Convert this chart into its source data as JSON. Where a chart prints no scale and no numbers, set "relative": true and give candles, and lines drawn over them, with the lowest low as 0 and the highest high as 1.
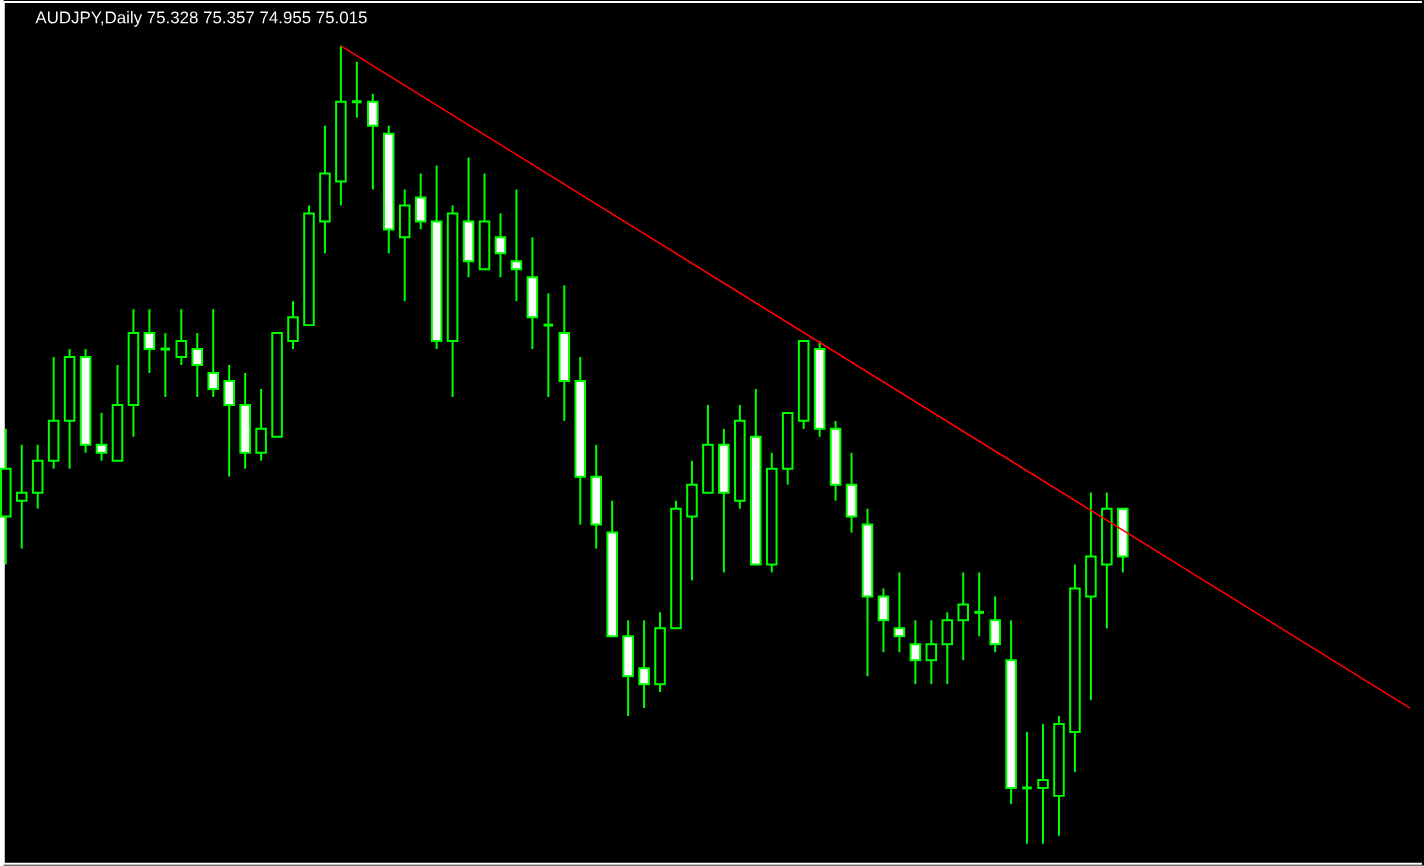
{
  "chart_data": {
    "type": "candlestick",
    "title": "AUDJPY,Daily  75.328 75.357 74.955 75.015",
    "relative": true,
    "color": "#00ff00",
    "categories": [
      null,
      null,
      null,
      null,
      null,
      null,
      null,
      null,
      null,
      null,
      null,
      null,
      null,
      null,
      null,
      null,
      null,
      null,
      null,
      null,
      null,
      null,
      null,
      null,
      null,
      null,
      null,
      null,
      null,
      null,
      null,
      null,
      null,
      null,
      null,
      null,
      null,
      null,
      null,
      null,
      null,
      null,
      null,
      null,
      null,
      null,
      null,
      null,
      null,
      null,
      null,
      null,
      null,
      null,
      null,
      null,
      null,
      null,
      null,
      null,
      null,
      null,
      null,
      null,
      null,
      null,
      null,
      null,
      null,
      null,
      null,
      null,
      null,
      null,
      null,
      null,
      null,
      null,
      null,
      null,
      null,
      null,
      null,
      null,
      null,
      null,
      null,
      null,
      null
    ],
    "ohlc": [
      [
        0.41,
        0.52,
        0.35,
        0.47
      ],
      [
        0.43,
        0.5,
        0.37,
        0.44
      ],
      [
        0.44,
        0.5,
        0.42,
        0.48
      ],
      [
        0.48,
        0.61,
        0.47,
        0.53
      ],
      [
        0.53,
        0.62,
        0.47,
        0.61
      ],
      [
        0.61,
        0.62,
        0.49,
        0.5
      ],
      [
        0.5,
        0.54,
        0.48,
        0.49
      ],
      [
        0.48,
        0.6,
        0.48,
        0.55
      ],
      [
        0.55,
        0.67,
        0.51,
        0.64
      ],
      [
        0.64,
        0.67,
        0.59,
        0.62
      ],
      [
        0.62,
        0.64,
        0.56,
        0.62
      ],
      [
        0.61,
        0.67,
        0.6,
        0.63
      ],
      [
        0.62,
        0.64,
        0.56,
        0.6
      ],
      [
        0.59,
        0.67,
        0.56,
        0.57
      ],
      [
        0.58,
        0.6,
        0.46,
        0.55
      ],
      [
        0.55,
        0.59,
        0.47,
        0.49
      ],
      [
        0.49,
        0.57,
        0.48,
        0.52
      ],
      [
        0.51,
        0.64,
        0.51,
        0.64
      ],
      [
        0.63,
        0.68,
        0.62,
        0.66
      ],
      [
        0.65,
        0.8,
        0.65,
        0.79
      ],
      [
        0.78,
        0.9,
        0.74,
        0.84
      ],
      [
        0.83,
        1.0,
        0.8,
        0.93
      ],
      [
        0.93,
        0.98,
        0.91,
        0.93
      ],
      [
        0.93,
        0.94,
        0.82,
        0.9
      ],
      [
        0.89,
        0.9,
        0.74,
        0.77
      ],
      [
        0.76,
        0.82,
        0.68,
        0.8
      ],
      [
        0.81,
        0.84,
        0.77,
        0.78
      ],
      [
        0.78,
        0.85,
        0.62,
        0.63
      ],
      [
        0.63,
        0.8,
        0.56,
        0.79
      ],
      [
        0.78,
        0.86,
        0.71,
        0.73
      ],
      [
        0.72,
        0.84,
        0.72,
        0.78
      ],
      [
        0.76,
        0.79,
        0.71,
        0.74
      ],
      [
        0.73,
        0.82,
        0.68,
        0.72
      ],
      [
        0.71,
        0.76,
        0.62,
        0.66
      ],
      [
        0.65,
        0.69,
        0.56,
        0.65
      ],
      [
        0.64,
        0.7,
        0.53,
        0.58
      ],
      [
        0.58,
        0.61,
        0.4,
        0.46
      ],
      [
        0.46,
        0.5,
        0.37,
        0.4
      ],
      [
        0.39,
        0.43,
        0.26,
        0.26
      ],
      [
        0.26,
        0.28,
        0.16,
        0.21
      ],
      [
        0.22,
        0.28,
        0.17,
        0.2
      ],
      [
        0.2,
        0.29,
        0.19,
        0.27
      ],
      [
        0.27,
        0.43,
        0.27,
        0.42
      ],
      [
        0.41,
        0.48,
        0.33,
        0.45
      ],
      [
        0.44,
        0.55,
        0.44,
        0.5
      ],
      [
        0.5,
        0.52,
        0.34,
        0.44
      ],
      [
        0.43,
        0.55,
        0.42,
        0.53
      ],
      [
        0.51,
        0.57,
        0.35,
        0.35
      ],
      [
        0.35,
        0.49,
        0.34,
        0.47
      ],
      [
        0.47,
        0.54,
        0.45,
        0.54
      ],
      [
        0.53,
        0.63,
        0.52,
        0.63
      ],
      [
        0.62,
        0.63,
        0.51,
        0.52
      ],
      [
        0.52,
        0.53,
        0.43,
        0.45
      ],
      [
        0.45,
        0.49,
        0.39,
        0.41
      ],
      [
        0.4,
        0.42,
        0.21,
        0.31
      ],
      [
        0.31,
        0.32,
        0.24,
        0.28
      ],
      [
        0.27,
        0.34,
        0.24,
        0.26
      ],
      [
        0.25,
        0.28,
        0.2,
        0.23
      ],
      [
        0.23,
        0.28,
        0.2,
        0.25
      ],
      [
        0.25,
        0.29,
        0.2,
        0.28
      ],
      [
        0.28,
        0.34,
        0.23,
        0.3
      ],
      [
        0.29,
        0.34,
        0.26,
        0.29
      ],
      [
        0.28,
        0.31,
        0.24,
        0.25
      ],
      [
        0.23,
        0.28,
        0.05,
        0.07
      ],
      [
        0.07,
        0.14,
        0.0,
        0.07
      ],
      [
        0.07,
        0.15,
        0.0,
        0.08
      ],
      [
        0.06,
        0.16,
        0.01,
        0.15
      ],
      [
        0.14,
        0.35,
        0.09,
        0.32
      ],
      [
        0.31,
        0.44,
        0.18,
        0.36
      ],
      [
        0.35,
        0.44,
        0.27,
        0.42
      ],
      [
        0.42,
        0.42,
        0.34,
        0.36
      ],
      null,
      null,
      null,
      null,
      null,
      null,
      null,
      null,
      null,
      null,
      null,
      null,
      null,
      null,
      null,
      null,
      null,
      null
    ],
    "series": [
      {
        "type": "line",
        "color": "#ff0000",
        "values": [
          null,
          null,
          null,
          null,
          null,
          null,
          null,
          null,
          null,
          null,
          null,
          null,
          null,
          null,
          null,
          null,
          null,
          null,
          null,
          null,
          null,
          1.0,
          null,
          null,
          null,
          null,
          null,
          null,
          null,
          null,
          null,
          null,
          null,
          null,
          null,
          null,
          null,
          null,
          null,
          null,
          null,
          null,
          null,
          null,
          null,
          null,
          null,
          null,
          null,
          null,
          null,
          null,
          null,
          null,
          null,
          null,
          null,
          null,
          null,
          null,
          null,
          null,
          null,
          null,
          null,
          null,
          null,
          null,
          null,
          null,
          null,
          null,
          null,
          null,
          null,
          null,
          null,
          null,
          null,
          null,
          null,
          null,
          null,
          null,
          null,
          null,
          null,
          null,
          0.17
        ]
      }
    ]
  }
}
